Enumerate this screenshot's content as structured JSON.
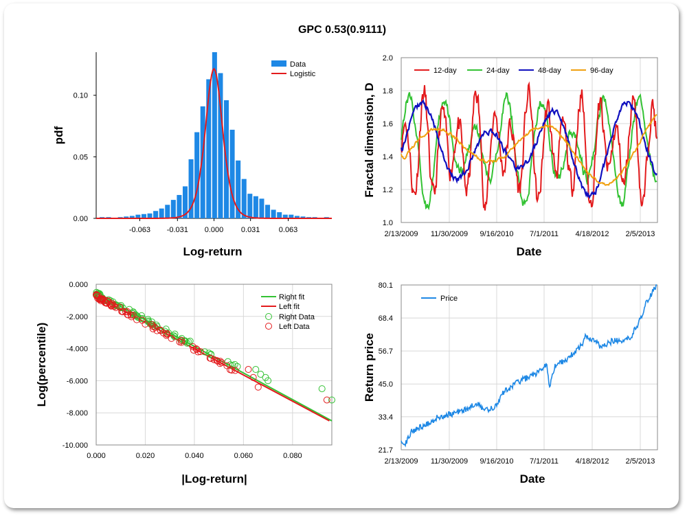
{
  "title": "GPC 0.53(0.9111)",
  "chart_data": [
    {
      "type": "bar",
      "name_key": "pdf-histogram",
      "xlabel": "Log-return",
      "ylabel": "pdf",
      "xlim": [
        -0.1,
        0.1
      ],
      "ylim": [
        0,
        0.135
      ],
      "xticks": [
        -0.063,
        -0.031,
        0.0,
        0.031,
        0.063
      ],
      "xtick_labels": [
        "-0.063",
        "-0.031",
        "0.000",
        "0.031",
        "0.063"
      ],
      "yticks": [
        0.0,
        0.05,
        0.1
      ],
      "ytick_labels": [
        "0.00",
        "0.05",
        "0.10"
      ],
      "legend": [
        "Data",
        "Logistic"
      ],
      "legend_position": "top-right",
      "colors": {
        "data": "#1E88E5",
        "fit": "#E31A1C"
      },
      "bin_centers": [
        -0.095,
        -0.0895,
        -0.0845,
        -0.0795,
        -0.0745,
        -0.0695,
        -0.0645,
        -0.0595,
        -0.0545,
        -0.0495,
        -0.0445,
        -0.0395,
        -0.0345,
        -0.0295,
        -0.0245,
        -0.0195,
        -0.0145,
        -0.0095,
        -0.0045,
        0.0005,
        0.0055,
        0.0105,
        0.0155,
        0.0205,
        0.0255,
        0.0305,
        0.0355,
        0.0405,
        0.0455,
        0.0505,
        0.0555,
        0.0605,
        0.0655,
        0.0705,
        0.0755,
        0.0805,
        0.0855,
        0.0905,
        0.0955
      ],
      "values": [
        0.001,
        0.001,
        0.0005,
        0.001,
        0.0015,
        0.002,
        0.003,
        0.0035,
        0.004,
        0.006,
        0.008,
        0.011,
        0.015,
        0.019,
        0.026,
        0.048,
        0.07,
        0.091,
        0.113,
        0.135,
        0.118,
        0.096,
        0.072,
        0.047,
        0.032,
        0.02,
        0.018,
        0.016,
        0.011,
        0.007,
        0.005,
        0.003,
        0.003,
        0.002,
        0.0015,
        0.001,
        0.001,
        0.0005,
        0.001
      ],
      "fit_y_peak": 0.1215
    },
    {
      "type": "line",
      "name_key": "fractal-dimension",
      "xlabel": "Date",
      "ylabel": "Fractal dimension, D",
      "ylim": [
        1.0,
        2.0
      ],
      "yticks": [
        1.0,
        1.2,
        1.4,
        1.6,
        1.8,
        2.0
      ],
      "ytick_labels": [
        "1.0",
        "1.2",
        "1.4",
        "1.6",
        "1.8",
        "2.0"
      ],
      "xtick_labels": [
        "2/13/2009",
        "11/30/2009",
        "9/16/2010",
        "7/1/2011",
        "4/18/2012",
        "2/5/2013"
      ],
      "legend_position": "top",
      "series": [
        {
          "name": "12-day",
          "color": "#E31A1C"
        },
        {
          "name": "24-day",
          "color": "#33C233"
        },
        {
          "name": "48-day",
          "color": "#0F0FBF"
        },
        {
          "name": "96-day",
          "color": "#F0A00F"
        }
      ]
    },
    {
      "type": "scatter",
      "name_key": "tail-fit",
      "xlabel": "|Log-return|",
      "ylabel": "Log(percentile)",
      "xlim": [
        0.0,
        0.096
      ],
      "ylim": [
        -10.0,
        0.0
      ],
      "xticks": [
        0.0,
        0.02,
        0.04,
        0.06,
        0.08
      ],
      "xtick_labels": [
        "0.000",
        "0.020",
        "0.040",
        "0.060",
        "0.080"
      ],
      "yticks": [
        0.0,
        -2.0,
        -4.0,
        -6.0,
        -8.0,
        -10.0
      ],
      "ytick_labels": [
        "0.000",
        "-2.000",
        "-4.000",
        "-6.000",
        "-8.000",
        "-10.000"
      ],
      "legend": [
        "Right fit",
        "Left fit",
        "Right Data",
        "Left Data"
      ],
      "legend_position": "top-right",
      "colors": {
        "right": "#33C233",
        "left": "#E31A1C"
      },
      "right_fit": {
        "x": [
          0.0,
          0.096
        ],
        "y": [
          -0.55,
          -8.5
        ]
      },
      "left_fit": {
        "x": [
          0.0,
          0.095
        ],
        "y": [
          -0.75,
          -8.5
        ]
      },
      "right_data_extra": [
        [
          0.065,
          -5.3
        ],
        [
          0.067,
          -5.6
        ],
        [
          0.069,
          -5.8
        ],
        [
          0.07,
          -6.0
        ],
        [
          0.092,
          -6.5
        ],
        [
          0.096,
          -7.2
        ]
      ],
      "left_data_extra": [
        [
          0.062,
          -5.3
        ],
        [
          0.064,
          -5.8
        ],
        [
          0.066,
          -6.4
        ],
        [
          0.094,
          -7.2
        ]
      ]
    },
    {
      "type": "line",
      "name_key": "return-price",
      "xlabel": "Date",
      "ylabel": "Return price",
      "ylim": [
        21.7,
        80.1
      ],
      "yticks": [
        21.7,
        33.4,
        45.0,
        56.7,
        68.4,
        80.1
      ],
      "ytick_labels": [
        "21.7",
        "33.4",
        "45.0",
        "56.7",
        "68.4",
        "80.1"
      ],
      "xtick_labels": [
        "2/13/2009",
        "11/30/2009",
        "9/16/2010",
        "7/1/2011",
        "4/18/2012",
        "2/5/2013"
      ],
      "legend": [
        "Price"
      ],
      "legend_position": "top-left",
      "color": "#1E88E5",
      "anchors": [
        [
          0.0,
          26.0
        ],
        [
          0.01,
          23.0
        ],
        [
          0.04,
          28.0
        ],
        [
          0.1,
          31.0
        ],
        [
          0.15,
          33.5
        ],
        [
          0.2,
          34.5
        ],
        [
          0.25,
          36.0
        ],
        [
          0.3,
          38.0
        ],
        [
          0.33,
          35.5
        ],
        [
          0.37,
          37.0
        ],
        [
          0.4,
          42.0
        ],
        [
          0.45,
          45.5
        ],
        [
          0.5,
          47.5
        ],
        [
          0.55,
          50.0
        ],
        [
          0.57,
          52.5
        ],
        [
          0.58,
          44.0
        ],
        [
          0.6,
          51.0
        ],
        [
          0.65,
          54.0
        ],
        [
          0.7,
          58.0
        ],
        [
          0.72,
          61.5
        ],
        [
          0.75,
          61.0
        ],
        [
          0.78,
          58.0
        ],
        [
          0.82,
          60.0
        ],
        [
          0.86,
          60.5
        ],
        [
          0.9,
          62.0
        ],
        [
          0.93,
          67.0
        ],
        [
          0.96,
          74.0
        ],
        [
          0.98,
          77.0
        ],
        [
          1.0,
          80.1
        ]
      ]
    }
  ]
}
